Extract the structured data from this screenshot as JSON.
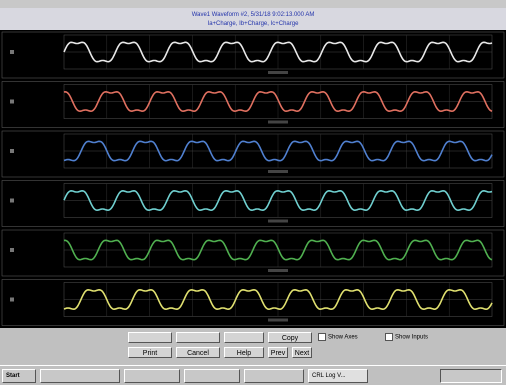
{
  "window": {
    "title": "Wave1 Waveform #2, 5/31/18 9:02:13.000 AM",
    "subtitle": "Ia+Charge, Ib+Charge, Ic+Charge"
  },
  "buttons": {
    "top": [
      "Copy"
    ],
    "bottom": [
      "Print",
      "Cancel",
      "Help",
      "Prev",
      "Next"
    ]
  },
  "checkboxes": [
    "Show Axes",
    "Show Inputs"
  ],
  "taskbar": {
    "start": "Start",
    "items": [
      "CRL Log V..."
    ]
  }
}
